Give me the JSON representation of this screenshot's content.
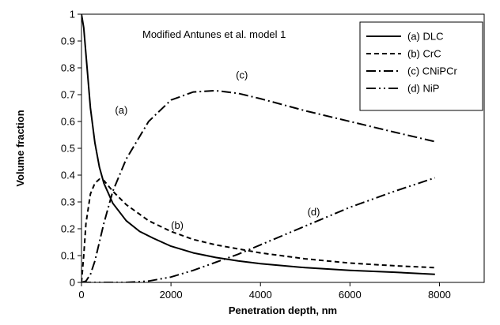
{
  "chart_data": {
    "type": "line",
    "title": "",
    "annotation_title": "Modified Antunes et al. model 1",
    "xlabel": "Penetration depth, nm",
    "ylabel": "Volume fraction",
    "xlim": [
      0,
      9000
    ],
    "ylim": [
      0,
      1
    ],
    "x_ticks": [
      0,
      2000,
      4000,
      6000,
      8000
    ],
    "x_tick_labels": [
      "0",
      "2000",
      "4000",
      "6000",
      "8000"
    ],
    "y_ticks": [
      0,
      0.1,
      0.2,
      0.3,
      0.4,
      0.5,
      0.6,
      0.7,
      0.8,
      0.9,
      1
    ],
    "y_tick_labels": [
      "0",
      "0.1",
      "0.2",
      "0.3",
      "0.4",
      "0.5",
      "0.6",
      "0.7",
      "0.8",
      "0.9",
      "1"
    ],
    "grid": false,
    "legend_position": "top-right",
    "series": [
      {
        "name": "(a)  DLC",
        "label": "(a)",
        "dash": "solid",
        "x": [
          0,
          50,
          100,
          200,
          300,
          400,
          500,
          700,
          1000,
          1300,
          1600,
          2000,
          2500,
          3000,
          3500,
          4000,
          5000,
          6000,
          7000,
          7900
        ],
        "y": [
          1.0,
          0.95,
          0.85,
          0.65,
          0.52,
          0.43,
          0.37,
          0.295,
          0.23,
          0.19,
          0.165,
          0.135,
          0.11,
          0.093,
          0.08,
          0.07,
          0.055,
          0.045,
          0.038,
          0.03
        ]
      },
      {
        "name": "(b)  CrC",
        "label": "(b)",
        "dash": "dashed",
        "x": [
          0,
          50,
          100,
          200,
          300,
          400,
          500,
          700,
          1000,
          1500,
          2000,
          2500,
          3000,
          4000,
          5000,
          6000,
          7000,
          7900
        ],
        "y": [
          0.0,
          0.1,
          0.22,
          0.33,
          0.37,
          0.385,
          0.38,
          0.34,
          0.29,
          0.23,
          0.19,
          0.16,
          0.14,
          0.11,
          0.088,
          0.072,
          0.062,
          0.055
        ]
      },
      {
        "name": "(c)  CNiPCr",
        "label": "(c)",
        "dash": "dash-dot",
        "x": [
          0,
          100,
          200,
          300,
          400,
          500,
          700,
          1000,
          1500,
          2000,
          2500,
          3000,
          3500,
          4000,
          5000,
          6000,
          7000,
          7900
        ],
        "y": [
          0.0,
          0.005,
          0.03,
          0.08,
          0.15,
          0.22,
          0.34,
          0.46,
          0.6,
          0.68,
          0.71,
          0.715,
          0.705,
          0.685,
          0.64,
          0.6,
          0.56,
          0.525
        ]
      },
      {
        "name": "(d)  NiP",
        "label": "(d)",
        "dash": "dash-dot-dot",
        "x": [
          0,
          1000,
          1500,
          2000,
          2500,
          3000,
          3500,
          4000,
          5000,
          6000,
          7000,
          7900
        ],
        "y": [
          0.0,
          0.0,
          0.005,
          0.02,
          0.045,
          0.075,
          0.105,
          0.14,
          0.21,
          0.28,
          0.34,
          0.39
        ]
      }
    ],
    "series_annotations": [
      {
        "text": "(a)",
        "x": 750,
        "y": 0.63
      },
      {
        "text": "(b)",
        "x": 2000,
        "y": 0.2
      },
      {
        "text": "(c)",
        "x": 3450,
        "y": 0.76
      },
      {
        "text": "(d)",
        "x": 5050,
        "y": 0.25
      }
    ]
  }
}
